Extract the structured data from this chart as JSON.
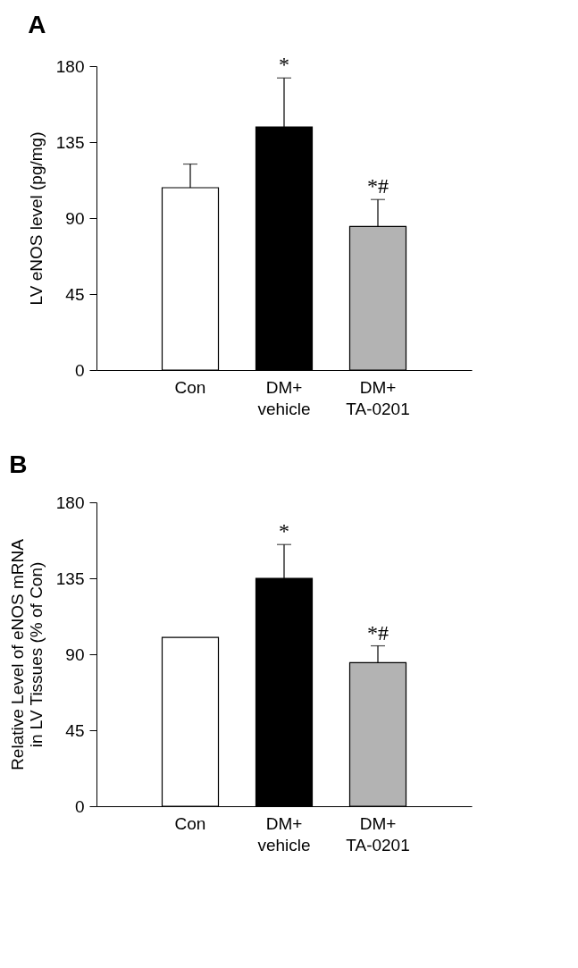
{
  "chart_data": [
    {
      "type": "bar",
      "title": "A",
      "ylabel": "LV eNOS level (pg/mg)",
      "categories": [
        "Con",
        "DM+\nvehicle",
        "DM+\nTA-0201"
      ],
      "values": [
        108,
        144,
        85
      ],
      "colors": [
        "#ffffff",
        "#000000",
        "#b3b3b3"
      ],
      "errors": [
        [
          108,
          122
        ],
        [
          144,
          173
        ],
        [
          85,
          101
        ]
      ],
      "ylim": [
        0,
        180
      ],
      "yticks": [
        0,
        45,
        90,
        135,
        180
      ],
      "grid": false,
      "annotations": [
        {
          "text": "*",
          "x": "DM+\nvehicle",
          "y": 173
        },
        {
          "text": "*#",
          "x": "DM+\nTA-0201",
          "y": 101
        }
      ]
    },
    {
      "type": "bar",
      "title": "B",
      "ylabel": "Relative Level of eNOS mRNA\nin LV Tissues (% of Con)",
      "categories": [
        "Con",
        "DM+\nvehicle",
        "DM+\nTA-0201"
      ],
      "values": [
        100,
        135,
        85
      ],
      "colors": [
        "#ffffff",
        "#000000",
        "#b3b3b3"
      ],
      "errors": [
        null,
        [
          135,
          155
        ],
        [
          85,
          95
        ]
      ],
      "ylim": [
        0,
        180
      ],
      "yticks": [
        0,
        45,
        90,
        135,
        180
      ],
      "grid": false,
      "annotations": [
        {
          "text": "*",
          "x": "DM+\nvehicle",
          "y": 155
        },
        {
          "text": "*#",
          "x": "DM+\nTA-0201",
          "y": 95
        }
      ]
    }
  ]
}
